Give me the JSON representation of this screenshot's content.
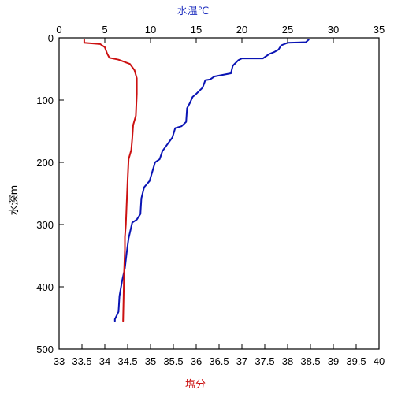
{
  "chart_data": {
    "type": "line",
    "title": "",
    "y_axis": {
      "label": "水深m",
      "range": [
        0,
        500
      ],
      "ticks": [
        0,
        100,
        200,
        300,
        400,
        500
      ],
      "reversed": true
    },
    "top_axis": {
      "label": "水温℃",
      "label_color": "#1f2fbf",
      "range": [
        0,
        35
      ],
      "ticks": [
        0,
        5,
        10,
        15,
        20,
        25,
        30,
        35
      ]
    },
    "bottom_axis": {
      "label": "塩分",
      "label_color": "#cc1111",
      "range": [
        33,
        40
      ],
      "ticks": [
        "33",
        "33.5",
        "34",
        "34.5",
        "35",
        "35.5",
        "36",
        "36.5",
        "37",
        "37.5",
        "38",
        "38.5",
        "39",
        "39.5",
        "40"
      ]
    },
    "grid": false,
    "legend": "none",
    "series": [
      {
        "quantity": "水温",
        "axis": "top",
        "color": "#0a14b4",
        "points": [
          [
            27.3,
            3
          ],
          [
            27.0,
            7
          ],
          [
            25.0,
            8
          ],
          [
            24.3,
            12
          ],
          [
            24.0,
            19
          ],
          [
            23.5,
            23
          ],
          [
            23.0,
            26
          ],
          [
            22.3,
            33
          ],
          [
            20.0,
            33
          ],
          [
            19.6,
            36
          ],
          [
            19.0,
            45
          ],
          [
            18.8,
            57
          ],
          [
            17.0,
            62
          ],
          [
            16.5,
            67
          ],
          [
            16.0,
            68
          ],
          [
            15.7,
            80
          ],
          [
            15.0,
            90
          ],
          [
            14.6,
            95
          ],
          [
            14.3,
            105
          ],
          [
            14.0,
            113
          ],
          [
            13.9,
            135
          ],
          [
            13.4,
            142
          ],
          [
            12.7,
            145
          ],
          [
            12.4,
            160
          ],
          [
            11.9,
            170
          ],
          [
            11.3,
            182
          ],
          [
            11.0,
            195
          ],
          [
            10.5,
            200
          ],
          [
            10.2,
            215
          ],
          [
            9.9,
            230
          ],
          [
            9.3,
            240
          ],
          [
            9.0,
            258
          ],
          [
            8.9,
            283
          ],
          [
            8.5,
            292
          ],
          [
            8.0,
            297
          ],
          [
            7.6,
            322
          ],
          [
            7.4,
            345
          ],
          [
            7.2,
            370
          ],
          [
            6.9,
            390
          ],
          [
            6.6,
            415
          ],
          [
            6.5,
            440
          ],
          [
            6.1,
            452
          ],
          [
            6.1,
            455
          ]
        ]
      },
      {
        "quantity": "塩分",
        "axis": "bottom",
        "color": "#cc1111",
        "points": [
          [
            33.55,
            3
          ],
          [
            33.55,
            8
          ],
          [
            33.9,
            10
          ],
          [
            34.0,
            15
          ],
          [
            34.05,
            25
          ],
          [
            34.1,
            32
          ],
          [
            34.3,
            35
          ],
          [
            34.55,
            42
          ],
          [
            34.65,
            52
          ],
          [
            34.7,
            65
          ],
          [
            34.7,
            90
          ],
          [
            34.68,
            125
          ],
          [
            34.62,
            140
          ],
          [
            34.6,
            162
          ],
          [
            34.58,
            180
          ],
          [
            34.52,
            195
          ],
          [
            34.5,
            228
          ],
          [
            34.48,
            265
          ],
          [
            34.46,
            300
          ],
          [
            34.44,
            320
          ],
          [
            34.44,
            340
          ],
          [
            34.42,
            380
          ],
          [
            34.41,
            420
          ],
          [
            34.4,
            455
          ]
        ]
      }
    ]
  }
}
